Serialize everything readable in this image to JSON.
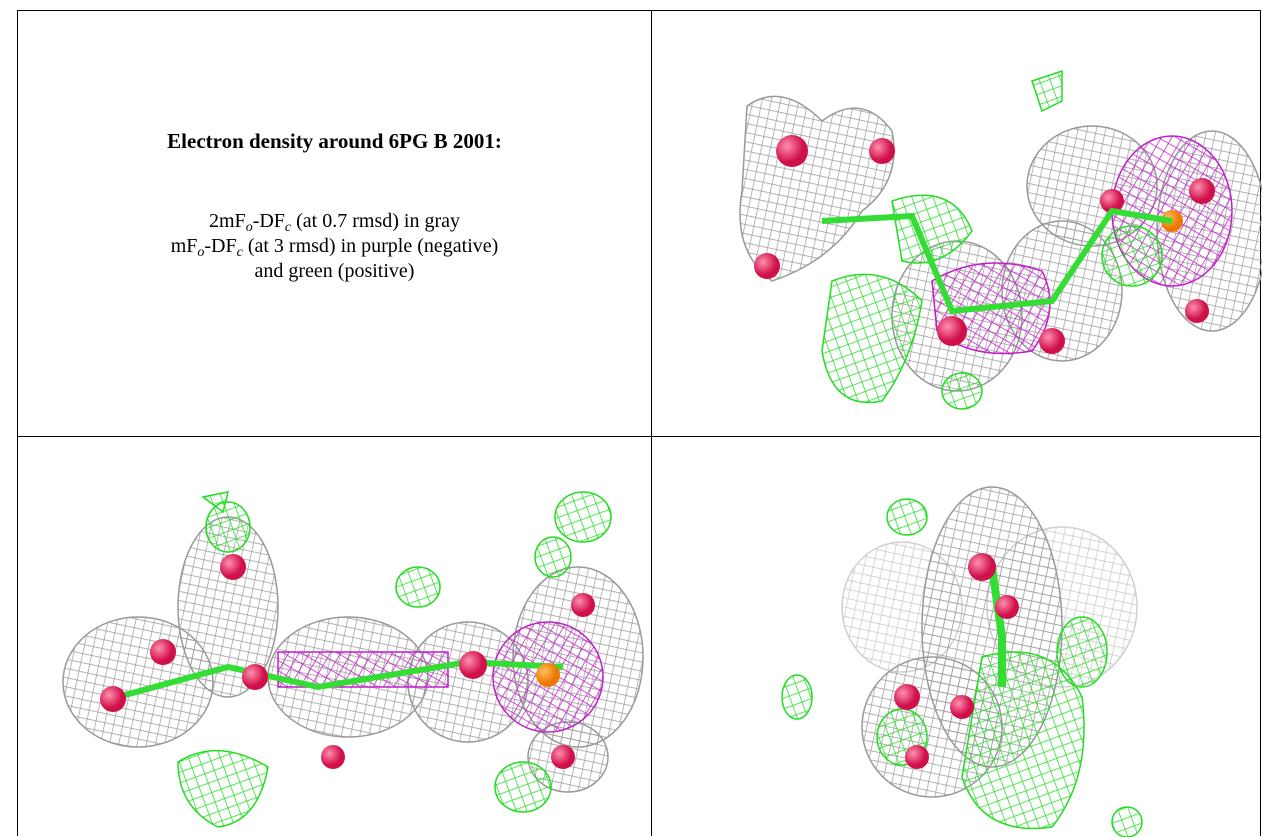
{
  "title": "Electron density around 6PG B 2001:",
  "legend": [
    {
      "parts": [
        "2mF",
        "o",
        "-DF",
        "c",
        " (at 0.7 rmsd) in gray"
      ]
    },
    {
      "parts": [
        "mF",
        "o",
        "-DF",
        "c",
        " (at 3 rmsd) in purple (negative)"
      ]
    },
    {
      "parts": [
        "and green (positive)"
      ]
    }
  ]
}
